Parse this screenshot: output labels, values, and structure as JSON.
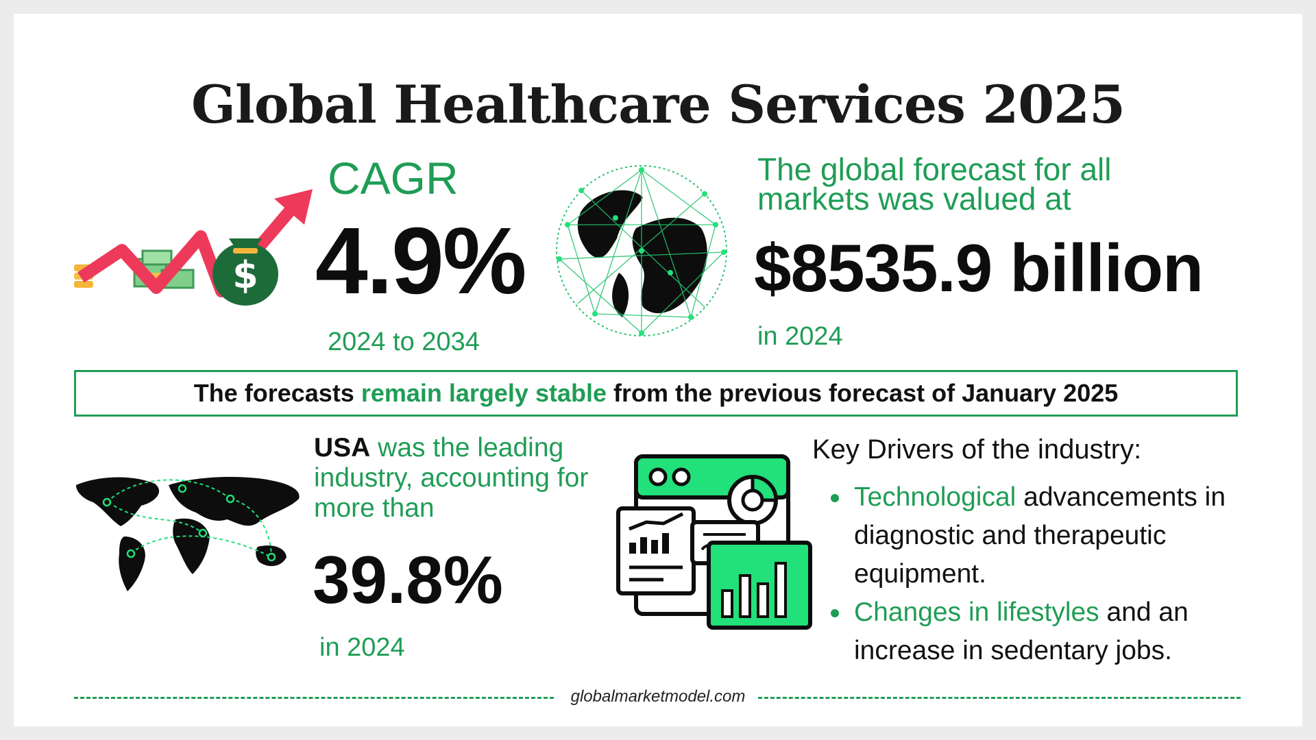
{
  "title": "Global Healthcare Services 2025",
  "cagr": {
    "label": "CAGR",
    "value": "4.9%",
    "period": "2024 to 2034"
  },
  "forecast": {
    "text": "The global forecast for all markets was valued at",
    "value": "$8535.9 billion",
    "year": "in 2024"
  },
  "banner": {
    "prefix": "The forecasts ",
    "highlight": "remain largely stable",
    "suffix": " from the previous forecast of January 2025"
  },
  "usa": {
    "country": "USA",
    "text": " was the leading industry, accounting for more than",
    "value": "39.8%",
    "year": "in 2024"
  },
  "drivers": {
    "title": "Key Drivers of the industry:",
    "items": [
      {
        "highlight": "Technological",
        "rest": " advancements in diagnostic and therapeutic equipment."
      },
      {
        "highlight": "Changes in lifestyles",
        "rest": " and an increase in sedentary jobs."
      }
    ]
  },
  "footer": {
    "source": "globalmarketmodel.com"
  },
  "colors": {
    "accent": "#1f9d55",
    "bright_green": "#22e07a",
    "arrow": "#ee3a5a",
    "text": "#0d0d0d"
  },
  "icons": [
    "growth-money-icon",
    "network-globe-icon",
    "world-map-icon",
    "analytics-dashboard-icon"
  ]
}
